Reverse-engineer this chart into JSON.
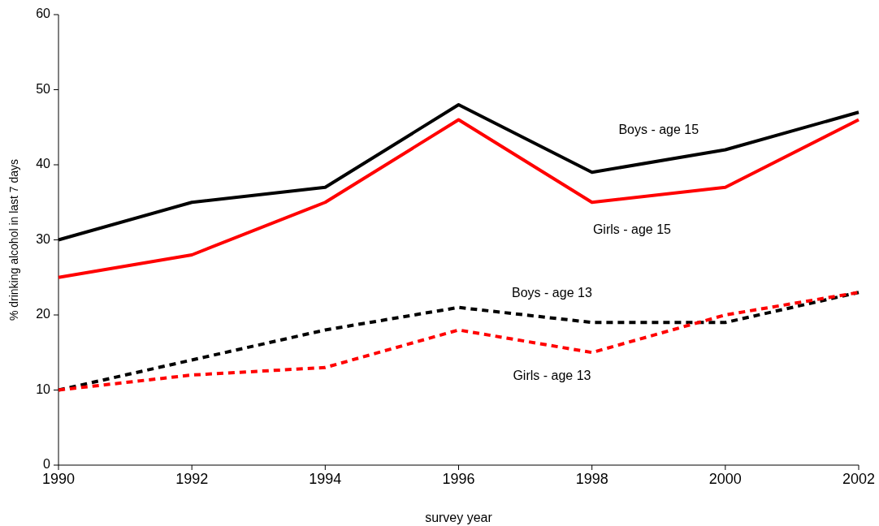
{
  "chart_data": {
    "type": "line",
    "xlabel": "survey year",
    "ylabel": "% drinking alcohol in last 7 days",
    "x": [
      1990,
      1992,
      1994,
      1996,
      1998,
      2000,
      2002
    ],
    "xlim": [
      1990,
      2002
    ],
    "xticks": [
      1990,
      1992,
      1994,
      1996,
      1998,
      2000,
      2002
    ],
    "ylim": [
      0,
      60
    ],
    "yticks": [
      0,
      10,
      20,
      30,
      40,
      50,
      60
    ],
    "grid": false,
    "marker": "none",
    "series": [
      {
        "name": "Boys - age 15",
        "color": "#000000",
        "line_style": "solid",
        "values": [
          30,
          35,
          37,
          48,
          39,
          42,
          47
        ]
      },
      {
        "name": "Girls - age 15",
        "color": "#ff0000",
        "line_style": "solid",
        "values": [
          25,
          28,
          35,
          46,
          35,
          37,
          46
        ]
      },
      {
        "name": "Boys - age 13",
        "color": "#000000",
        "line_style": "dashed",
        "values": [
          10,
          14,
          18,
          21,
          19,
          19,
          23
        ]
      },
      {
        "name": "Girls - age 13",
        "color": "#ff0000",
        "line_style": "dashed",
        "values": [
          10,
          12,
          13,
          18,
          15,
          20,
          23
        ]
      }
    ]
  }
}
